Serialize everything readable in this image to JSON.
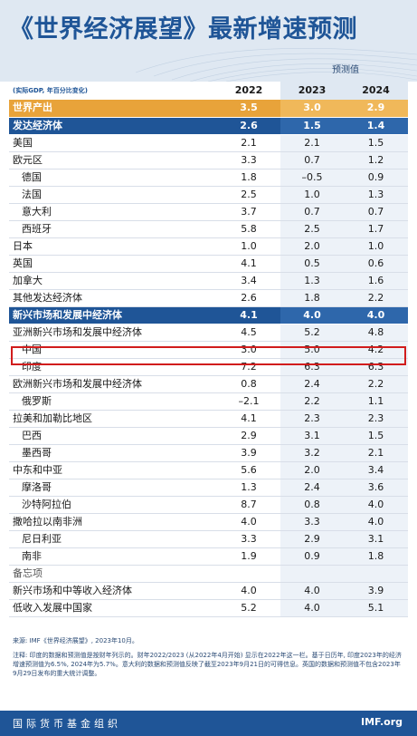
{
  "title": "《世界经济展望》最新增速预测",
  "projection_label": "预测值",
  "unit_note": "(实际GDP, 年百分比变化)",
  "years": [
    "2022",
    "2023",
    "2024"
  ],
  "rows": [
    {
      "name": "世界产出",
      "v": [
        "3.5",
        "3.0",
        "2.9"
      ]
    },
    {
      "name": "发达经济体",
      "v": [
        "2.6",
        "1.5",
        "1.4"
      ]
    },
    {
      "name": "美国",
      "v": [
        "2.1",
        "2.1",
        "1.5"
      ]
    },
    {
      "name": "欧元区",
      "v": [
        "3.3",
        "0.7",
        "1.2"
      ]
    },
    {
      "name": "德国",
      "v": [
        "1.8",
        "–0.5",
        "0.9"
      ]
    },
    {
      "name": "法国",
      "v": [
        "2.5",
        "1.0",
        "1.3"
      ]
    },
    {
      "name": "意大利",
      "v": [
        "3.7",
        "0.7",
        "0.7"
      ]
    },
    {
      "name": "西班牙",
      "v": [
        "5.8",
        "2.5",
        "1.7"
      ]
    },
    {
      "name": "日本",
      "v": [
        "1.0",
        "2.0",
        "1.0"
      ]
    },
    {
      "name": "英国",
      "v": [
        "4.1",
        "0.5",
        "0.6"
      ]
    },
    {
      "name": "加拿大",
      "v": [
        "3.4",
        "1.3",
        "1.6"
      ]
    },
    {
      "name": "其他发达经济体",
      "v": [
        "2.6",
        "1.8",
        "2.2"
      ]
    },
    {
      "name": "新兴市场和发展中经济体",
      "v": [
        "4.1",
        "4.0",
        "4.0"
      ]
    },
    {
      "name": "亚洲新兴市场和发展中经济体",
      "v": [
        "4.5",
        "5.2",
        "4.8"
      ]
    },
    {
      "name": "中国",
      "v": [
        "3.0",
        "5.0",
        "4.2"
      ]
    },
    {
      "name": "印度",
      "v": [
        "7.2",
        "6.3",
        "6.3"
      ]
    },
    {
      "name": "欧洲新兴市场和发展中经济体",
      "v": [
        "0.8",
        "2.4",
        "2.2"
      ]
    },
    {
      "name": "俄罗斯",
      "v": [
        "–2.1",
        "2.2",
        "1.1"
      ]
    },
    {
      "name": "拉美和加勒比地区",
      "v": [
        "4.1",
        "2.3",
        "2.3"
      ]
    },
    {
      "name": "巴西",
      "v": [
        "2.9",
        "3.1",
        "1.5"
      ]
    },
    {
      "name": "墨西哥",
      "v": [
        "3.9",
        "3.2",
        "2.1"
      ]
    },
    {
      "name": "中东和中亚",
      "v": [
        "5.6",
        "2.0",
        "3.4"
      ]
    },
    {
      "name": "摩洛哥",
      "v": [
        "1.3",
        "2.4",
        "3.6"
      ]
    },
    {
      "name": "沙特阿拉伯",
      "v": [
        "8.7",
        "0.8",
        "4.0"
      ]
    },
    {
      "name": "撒哈拉以南非洲",
      "v": [
        "4.0",
        "3.3",
        "4.0"
      ]
    },
    {
      "name": "尼日利亚",
      "v": [
        "3.3",
        "2.9",
        "3.1"
      ]
    },
    {
      "name": "南非",
      "v": [
        "1.9",
        "0.9",
        "1.8"
      ]
    },
    {
      "name": "备忘项",
      "v": [
        "",
        "",
        ""
      ]
    },
    {
      "name": "新兴市场和中等收入经济体",
      "v": [
        "4.0",
        "4.0",
        "3.9"
      ]
    },
    {
      "name": "低收入发展中国家",
      "v": [
        "5.2",
        "4.0",
        "5.1"
      ]
    }
  ],
  "source": "来源: IMF《世界经济展望》, 2023年10月。",
  "note": "注释: 印度的数据和预测值是按财年列示的。财年2022/2023 (从2022年4月开始) 显示在2022年这一栏。基于日历年, 印度2023年的经济增速预测值为6.5%, 2024年为5.7%。意大利的数据和预测值反映了截至2023年9月21日的可得信息。英国的数据和预测值不包含2023年9月29日发布的重大统计调整。",
  "footer": {
    "org": "国际货币基金组织",
    "logo": "IMF.org"
  },
  "colors": {
    "brand_blue": "#1f5597",
    "world_orange": "#e8a33a",
    "highlight_red": "#d11c1c"
  }
}
